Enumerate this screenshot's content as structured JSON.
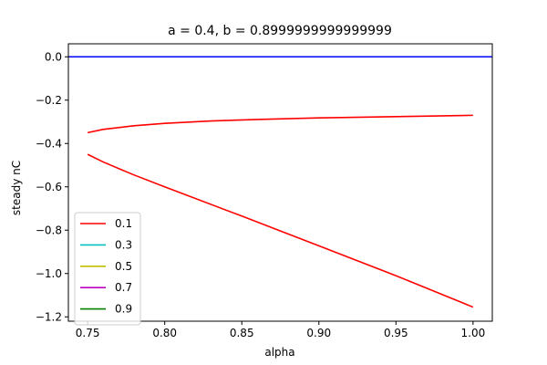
{
  "chart_data": {
    "type": "line",
    "title": "a = 0.4, b = 0.8999999999999999",
    "xlabel": "alpha",
    "ylabel": "steady nC",
    "xlim": [
      0.7375,
      1.0125
    ],
    "ylim": [
      -1.22,
      0.06
    ],
    "xticks": [
      0.75,
      0.8,
      0.85,
      0.9,
      0.95,
      1.0
    ],
    "xtick_labels": [
      "0.75",
      "0.80",
      "0.85",
      "0.90",
      "0.95",
      "1.00"
    ],
    "yticks": [
      0.0,
      -0.2,
      -0.4,
      -0.6,
      -0.8,
      -1.0,
      -1.2
    ],
    "ytick_labels": [
      "0.0",
      "−0.2",
      "−0.4",
      "−0.6",
      "−0.8",
      "−1.0",
      "−1.2"
    ],
    "grid": false,
    "legend_position": "lower-left",
    "legend": [
      {
        "label": "0.1",
        "color": "#ff0000"
      },
      {
        "label": "0.3",
        "color": "#00bfbf"
      },
      {
        "label": "0.5",
        "color": "#bfbf00"
      },
      {
        "label": "0.7",
        "color": "#bf00bf"
      },
      {
        "label": "0.9",
        "color": "#008000"
      }
    ],
    "series": [
      {
        "color": "#ff0000",
        "x": [
          0.75,
          0.76,
          0.78,
          0.8,
          0.83,
          0.86,
          0.9,
          0.95,
          1.0
        ],
        "y": [
          -0.35,
          -0.335,
          -0.318,
          -0.307,
          -0.296,
          -0.289,
          -0.282,
          -0.276,
          -0.27
        ]
      },
      {
        "color": "#ff0000",
        "x": [
          0.75,
          0.76,
          0.78,
          0.8,
          0.85,
          0.9,
          0.95,
          1.0
        ],
        "y": [
          -0.45,
          -0.485,
          -0.545,
          -0.6,
          -0.735,
          -0.872,
          -1.01,
          -1.155
        ]
      },
      {
        "color": "#0000ff",
        "x": [
          0.7375,
          1.0125
        ],
        "y": [
          0.0,
          0.0
        ]
      }
    ]
  }
}
